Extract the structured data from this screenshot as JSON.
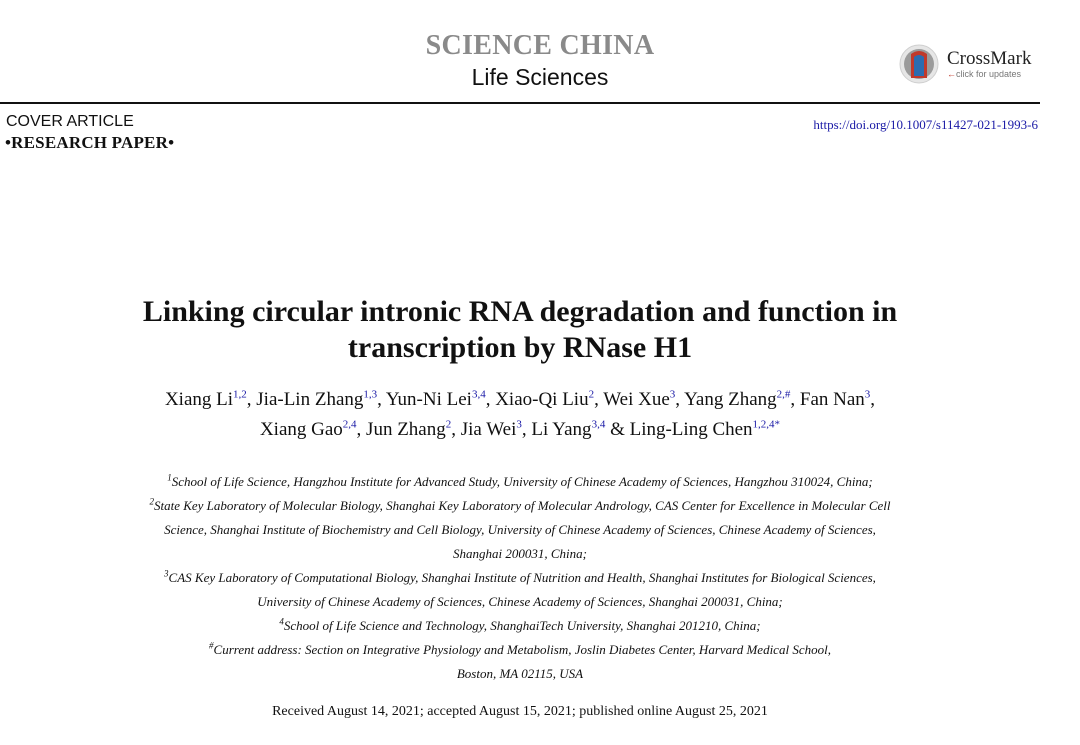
{
  "header": {
    "journal_title": "SCIENCE CHINA",
    "journal_subtitle": "Life Sciences",
    "crossmark": {
      "name": "CrossMark",
      "subtext": "click for updates",
      "icon": "crossmark-logo-icon"
    }
  },
  "meta": {
    "cover_label": "COVER ARTICLE",
    "article_type": "•RESEARCH PAPER•",
    "doi": "https://doi.org/10.1007/s11427-021-1993-6"
  },
  "title": {
    "line1": "Linking circular intronic RNA degradation and function in",
    "line2": "transcription by RNase H1"
  },
  "authors": [
    {
      "name": "Xiang Li",
      "sup": "1,2",
      "sep": ", "
    },
    {
      "name": "Jia-Lin Zhang",
      "sup": "1,3",
      "sep": ", "
    },
    {
      "name": "Yun-Ni Lei",
      "sup": "3,4",
      "sep": ", "
    },
    {
      "name": "Xiao-Qi Liu",
      "sup": "2",
      "sep": ", "
    },
    {
      "name": "Wei Xue",
      "sup": "3",
      "sep": ", "
    },
    {
      "name": "Yang Zhang",
      "sup": "2,#",
      "sep": ", "
    },
    {
      "name": "Fan Nan",
      "sup": "3",
      "sep": ","
    },
    {
      "name": "Xiang Gao",
      "sup": "2,4",
      "sep": ", "
    },
    {
      "name": "Jun Zhang",
      "sup": "2",
      "sep": ", "
    },
    {
      "name": "Jia Wei",
      "sup": "3",
      "sep": ", "
    },
    {
      "name": "Li Yang",
      "sup": "3,4",
      "sep": " & "
    },
    {
      "name": "Ling-Ling Chen",
      "sup": "1,2,4*",
      "sep": ""
    }
  ],
  "affiliations": [
    {
      "sup": "1",
      "text": "School of Life Science, Hangzhou Institute for Advanced Study, University of Chinese Academy of Sciences, Hangzhou 310024, China;"
    },
    {
      "sup": "2",
      "text": "State Key Laboratory of Molecular Biology, Shanghai Key Laboratory of Molecular Andrology, CAS Center for Excellence in Molecular Cell"
    },
    {
      "sup": "",
      "text": "Science, Shanghai Institute of Biochemistry and Cell Biology, University of Chinese Academy of Sciences, Chinese Academy of Sciences,"
    },
    {
      "sup": "",
      "text": "Shanghai 200031, China;"
    },
    {
      "sup": "3",
      "text": "CAS Key Laboratory of Computational Biology, Shanghai Institute of Nutrition and Health, Shanghai Institutes for Biological Sciences,"
    },
    {
      "sup": "",
      "text": "University of Chinese Academy of Sciences, Chinese Academy of Sciences, Shanghai 200031, China;"
    },
    {
      "sup": "4",
      "text": "School of Life Science and Technology, ShanghaiTech University, Shanghai 201210, China;"
    },
    {
      "sup": "#",
      "text": "Current address: Section on Integrative Physiology and Metabolism, Joslin Diabetes Center, Harvard Medical School,"
    },
    {
      "sup": "",
      "text": "Boston, MA 02115, USA"
    }
  ],
  "dates": "Received August 14, 2021; accepted August 15, 2021; published online August 25, 2021"
}
